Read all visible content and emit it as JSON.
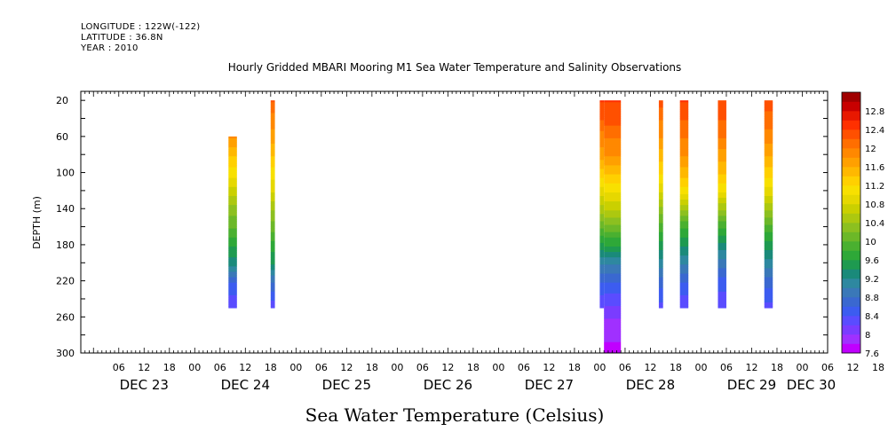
{
  "header": {
    "longitude": "LONGITUDE : 122W(-122)",
    "latitude": "LATITUDE : 36.8N",
    "year": "YEAR : 2010"
  },
  "chart_data": {
    "type": "heatmap",
    "title": "Hourly Gridded MBARI Mooring M1 Sea Water Temperature and Salinity Observations",
    "xlabel": "",
    "ylabel": "DEPTH (m)",
    "colorbar_label": "Sea Water Temperature (Celsius)",
    "y_reversed": true,
    "ylim": [
      300,
      10
    ],
    "xlim_hours": [
      -3,
      174
    ],
    "x_start": "DEC 23 00:00",
    "hour_ticks": [
      "06",
      "12",
      "18",
      "00",
      "06",
      "12",
      "18",
      "00",
      "06",
      "12",
      "18",
      "00",
      "06",
      "12",
      "18",
      "00",
      "06",
      "12",
      "18",
      "00",
      "06",
      "12",
      "18",
      "00",
      "06",
      "12",
      "18",
      "00",
      "06",
      "12",
      "18",
      "00"
    ],
    "day_labels": [
      "DEC 23",
      "DEC 24",
      "DEC 25",
      "DEC 26",
      "DEC 27",
      "DEC 28",
      "DEC 29",
      "DEC 30"
    ],
    "y_ticks": [
      20,
      60,
      100,
      140,
      180,
      220,
      260,
      300
    ],
    "colorbar_levels": [
      7.6,
      7.8,
      8.0,
      8.2,
      8.4,
      8.6,
      8.8,
      9.0,
      9.2,
      9.4,
      9.6,
      9.8,
      10.0,
      10.2,
      10.4,
      10.6,
      10.8,
      11.0,
      11.2,
      11.4,
      11.6,
      11.8,
      12.0,
      12.2,
      12.4,
      12.6,
      12.8,
      13.0
    ],
    "colorbar_tick_labels": [
      "7.6",
      "8",
      "8.4",
      "8.8",
      "9.2",
      "9.6",
      "10",
      "10.4",
      "10.8",
      "11.2",
      "11.6",
      "12",
      "12.4",
      "12.8"
    ],
    "colors": [
      "#c000ff",
      "#a030ff",
      "#7a3cff",
      "#5a4cff",
      "#3c5cf0",
      "#3a68d0",
      "#3a78b8",
      "#2e88a0",
      "#1a8a7a",
      "#1e9a50",
      "#2ea838",
      "#4ab030",
      "#6cb828",
      "#8cc020",
      "#acc810",
      "#cad000",
      "#e6d800",
      "#f8e000",
      "#ffd000",
      "#ffb800",
      "#ffa000",
      "#ff8800",
      "#ff6e00",
      "#ff5000",
      "#ff3000",
      "#e81800",
      "#c80000",
      "#a00000"
    ],
    "profiles": [
      {
        "time": "DEC 24 09:00",
        "start_hour": 32,
        "end_hour": 34,
        "depths": [
          60,
          80,
          100,
          120,
          140,
          160,
          180,
          200,
          220,
          250
        ],
        "temps": [
          11.8,
          11.4,
          11.1,
          10.7,
          10.3,
          10.0,
          9.6,
          9.3,
          8.6,
          8.2
        ]
      },
      {
        "time": "DEC 24 19:00",
        "start_hour": 42,
        "end_hour": 43,
        "depths": [
          20,
          40,
          60,
          80,
          100,
          120,
          140,
          160,
          180,
          200,
          220,
          250
        ],
        "temps": [
          12.2,
          11.9,
          11.7,
          11.4,
          11.1,
          10.8,
          10.4,
          10.1,
          9.7,
          9.4,
          8.8,
          8.2
        ]
      },
      {
        "time": "DEC 28 00:00",
        "start_hour": 120,
        "end_hour": 121,
        "depths": [
          20,
          40,
          60,
          80,
          100,
          120,
          140,
          160,
          180,
          200,
          220,
          250
        ],
        "temps": [
          12.4,
          12.2,
          11.9,
          11.7,
          11.3,
          10.9,
          10.5,
          10.0,
          9.5,
          9.0,
          8.6,
          8.2
        ]
      },
      {
        "time": "DEC 28 01:00",
        "start_hour": 121,
        "end_hour": 125,
        "depths": [
          20,
          40,
          60,
          80,
          100,
          120,
          140,
          160,
          180,
          200,
          220,
          260,
          300
        ],
        "temps": [
          12.4,
          12.3,
          12.0,
          11.8,
          11.4,
          11.0,
          10.6,
          10.1,
          9.6,
          9.0,
          8.6,
          8.0,
          7.7
        ]
      },
      {
        "time": "DEC 28 14:00",
        "start_hour": 134,
        "end_hour": 135,
        "depths": [
          20,
          40,
          60,
          80,
          100,
          120,
          140,
          160,
          180,
          200,
          220,
          250
        ],
        "temps": [
          12.3,
          12.0,
          11.8,
          11.5,
          11.2,
          10.8,
          10.3,
          9.9,
          9.5,
          9.1,
          8.7,
          8.3
        ]
      },
      {
        "time": "DEC 28 19:00",
        "start_hour": 139,
        "end_hour": 141,
        "depths": [
          20,
          40,
          60,
          80,
          100,
          120,
          140,
          160,
          180,
          200,
          220,
          250
        ],
        "temps": [
          12.4,
          12.2,
          12.0,
          11.8,
          11.5,
          11.1,
          10.4,
          9.8,
          9.4,
          9.0,
          8.6,
          8.2
        ]
      },
      {
        "time": "DEC 29 04:00",
        "start_hour": 148,
        "end_hour": 150,
        "depths": [
          20,
          40,
          60,
          80,
          100,
          120,
          140,
          160,
          180,
          200,
          220,
          250
        ],
        "temps": [
          12.3,
          12.2,
          12.0,
          11.7,
          11.4,
          11.0,
          10.4,
          9.8,
          9.3,
          8.9,
          8.5,
          8.2
        ]
      },
      {
        "time": "DEC 29 15:00",
        "start_hour": 159,
        "end_hour": 161,
        "depths": [
          20,
          40,
          60,
          80,
          100,
          120,
          140,
          160,
          180,
          200,
          220,
          250
        ],
        "temps": [
          12.3,
          12.1,
          11.9,
          11.6,
          11.3,
          10.9,
          10.4,
          9.9,
          9.5,
          9.1,
          8.7,
          8.3
        ]
      }
    ]
  }
}
